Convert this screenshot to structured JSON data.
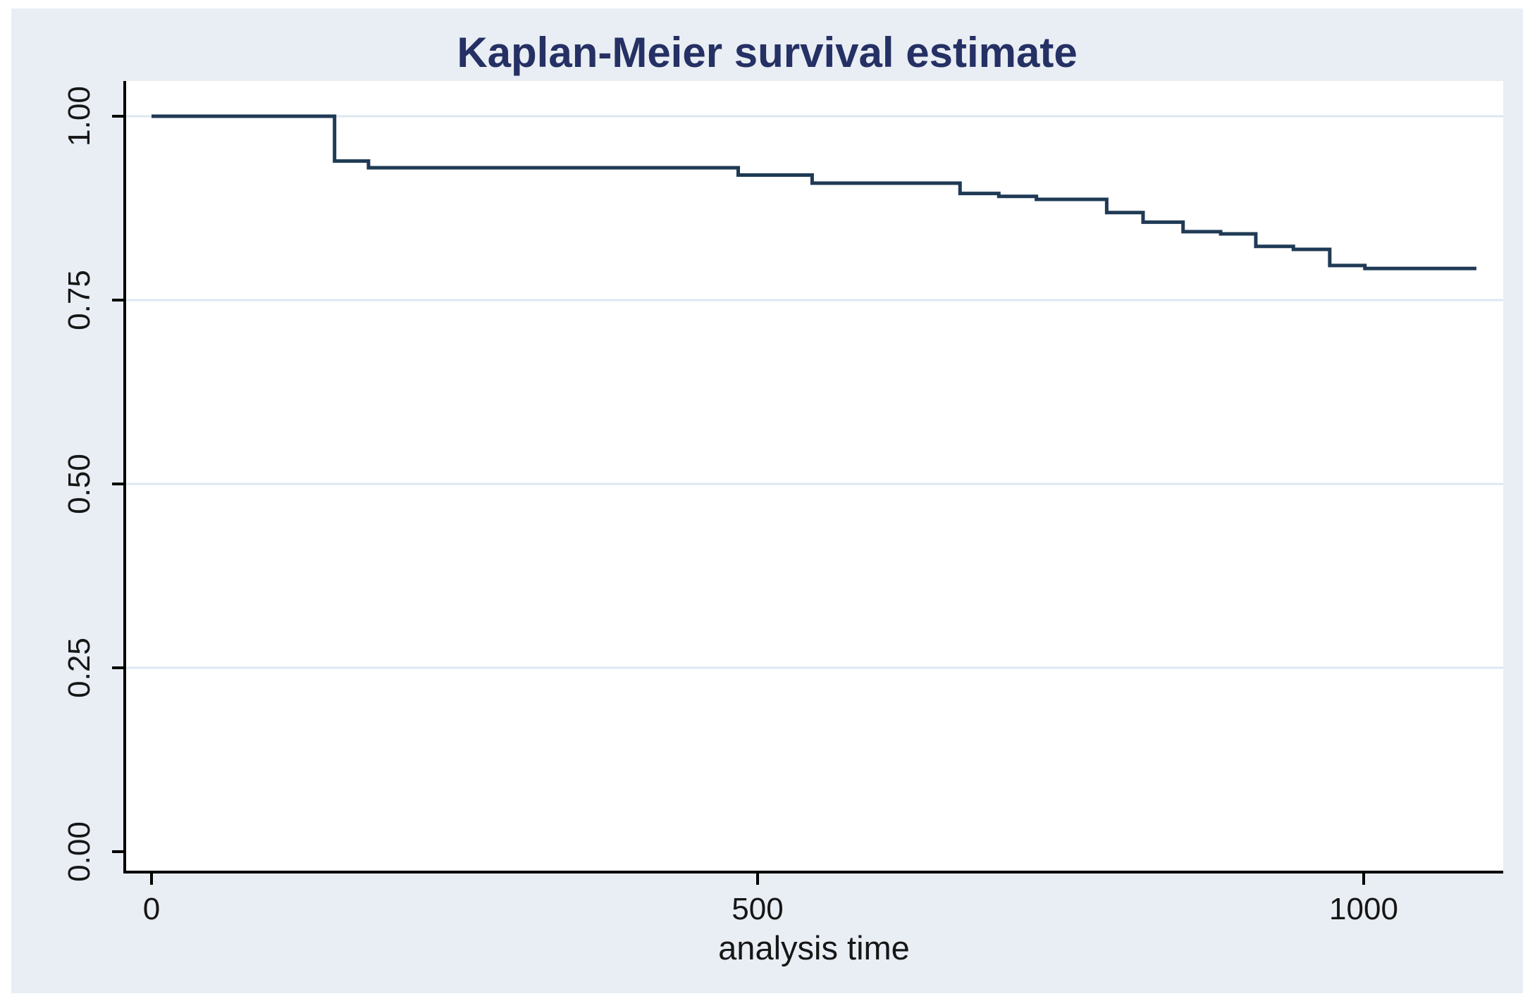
{
  "title": "Kaplan-Meier survival estimate",
  "chart_data": {
    "type": "line",
    "subtype": "kaplan-meier-step",
    "title": "Kaplan-Meier survival estimate",
    "xlabel": "analysis time",
    "ylabel": "",
    "xlim": [
      0,
      1115
    ],
    "ylim": [
      0,
      1
    ],
    "x_ticks": [
      {
        "value": 0,
        "label": "0"
      },
      {
        "value": 500,
        "label": "500"
      },
      {
        "value": 1000,
        "label": "1000"
      }
    ],
    "y_ticks": [
      {
        "value": 0.0,
        "label": "0.00"
      },
      {
        "value": 0.25,
        "label": "0.25"
      },
      {
        "value": 0.5,
        "label": "0.50"
      },
      {
        "value": 0.75,
        "label": "0.75"
      },
      {
        "value": 1.0,
        "label": "1.00"
      }
    ],
    "gridline_y_values": [
      0.25,
      0.5,
      0.75,
      1.0
    ],
    "legend": "none",
    "grid": "horizontal-only",
    "series": [
      {
        "name": "survival estimate",
        "steps": [
          {
            "t": 0,
            "s": 1.0
          },
          {
            "t": 151,
            "s": 0.939
          },
          {
            "t": 179,
            "s": 0.93
          },
          {
            "t": 484,
            "s": 0.92
          },
          {
            "t": 545,
            "s": 0.909
          },
          {
            "t": 667,
            "s": 0.895
          },
          {
            "t": 699,
            "s": 0.891
          },
          {
            "t": 730,
            "s": 0.887
          },
          {
            "t": 788,
            "s": 0.869
          },
          {
            "t": 818,
            "s": 0.856
          },
          {
            "t": 851,
            "s": 0.843
          },
          {
            "t": 882,
            "s": 0.84
          },
          {
            "t": 911,
            "s": 0.823
          },
          {
            "t": 942,
            "s": 0.819
          },
          {
            "t": 972,
            "s": 0.797
          },
          {
            "t": 1001,
            "s": 0.793
          }
        ],
        "t_end": 1093
      }
    ],
    "colors": {
      "line": "#1f3a54",
      "title": "#253064",
      "canvas_background": "#e9eef4",
      "plot_background": "#ffffff",
      "gridline": "#dce8f2",
      "axis": "#000000",
      "tick_text": "#161616"
    }
  }
}
